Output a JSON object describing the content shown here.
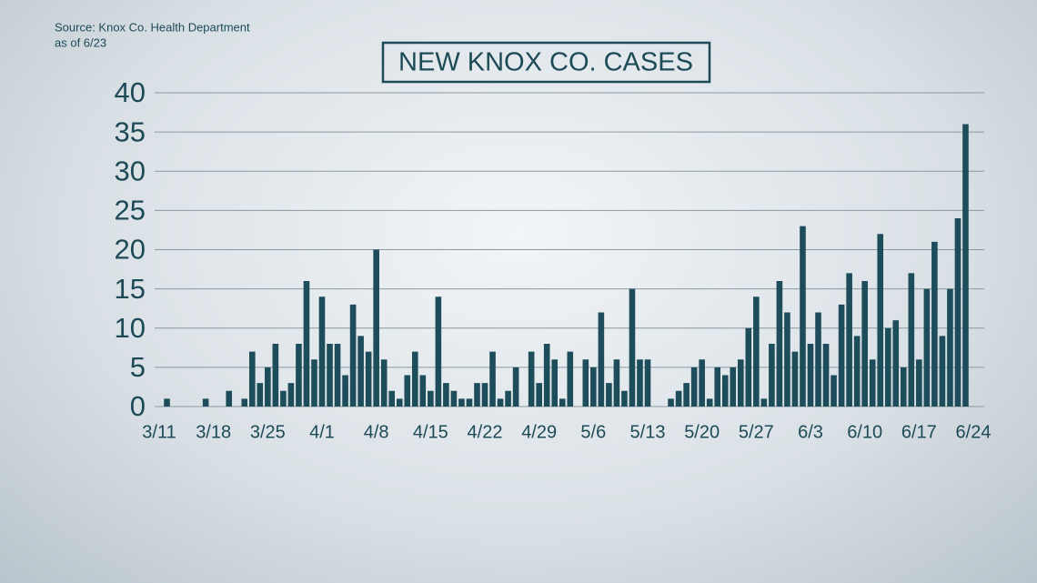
{
  "chart_data": {
    "type": "bar",
    "title": "NEW KNOX CO. CASES",
    "source": "Source: Knox Co. Health Department",
    "note": "as of 6/23",
    "categories": [
      "3/11",
      null,
      null,
      null,
      null,
      null,
      null,
      "3/18",
      null,
      null,
      null,
      null,
      null,
      null,
      "3/25",
      null,
      null,
      null,
      null,
      null,
      null,
      "4/1",
      null,
      null,
      null,
      null,
      null,
      null,
      "4/8",
      null,
      null,
      null,
      null,
      null,
      null,
      "4/15",
      null,
      null,
      null,
      null,
      null,
      null,
      "4/22",
      null,
      null,
      null,
      null,
      null,
      null,
      "4/29",
      null,
      null,
      null,
      null,
      null,
      null,
      "5/6",
      null,
      null,
      null,
      null,
      null,
      null,
      "5/13",
      null,
      null,
      null,
      null,
      null,
      null,
      "5/20",
      null,
      null,
      null,
      null,
      null,
      null,
      "5/27",
      null,
      null,
      null,
      null,
      null,
      null,
      "6/3",
      null,
      null,
      null,
      null,
      null,
      null,
      "6/10",
      null,
      null,
      null,
      null,
      null,
      null,
      "6/17",
      null,
      null,
      null,
      null,
      null,
      null,
      "6/24"
    ],
    "values": [
      0,
      1,
      0,
      0,
      0,
      0,
      1,
      0,
      0,
      2,
      0,
      1,
      7,
      3,
      5,
      8,
      2,
      3,
      8,
      16,
      6,
      14,
      8,
      8,
      4,
      13,
      9,
      7,
      20,
      6,
      2,
      1,
      4,
      7,
      4,
      2,
      14,
      3,
      2,
      1,
      1,
      3,
      3,
      7,
      1,
      2,
      5,
      0,
      7,
      3,
      8,
      6,
      1,
      7,
      0,
      6,
      5,
      12,
      3,
      6,
      2,
      15,
      6,
      6,
      0,
      0,
      1,
      2,
      3,
      5,
      6,
      1,
      5,
      4,
      5,
      6,
      10,
      14,
      1,
      8,
      16,
      12,
      7,
      23,
      8,
      12,
      8,
      4,
      13,
      17,
      9,
      16,
      6,
      22,
      10,
      11,
      5,
      17,
      6,
      15,
      21,
      9,
      15,
      24,
      36,
      null
    ],
    "color": "#1d4d5a",
    "ylim": [
      0,
      40
    ],
    "yticks": [
      0,
      5,
      10,
      15,
      20,
      25,
      30,
      35,
      40
    ],
    "grid": true
  }
}
